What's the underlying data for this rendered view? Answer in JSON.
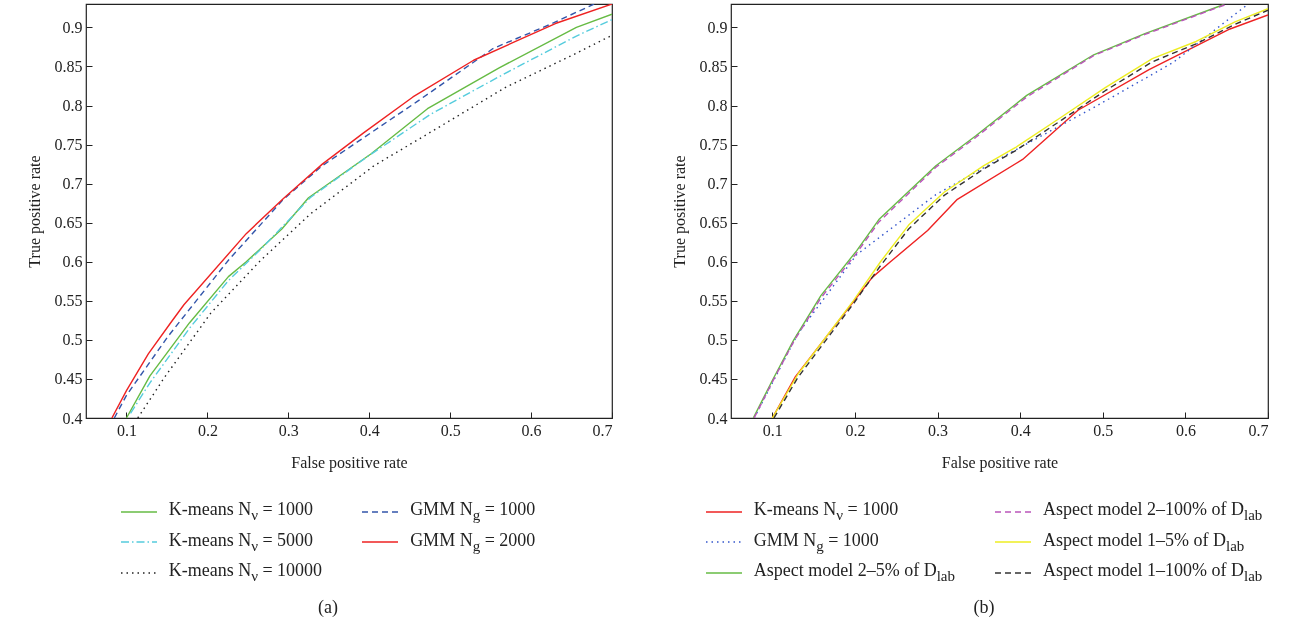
{
  "chart_data": [
    {
      "type": "line",
      "xlabel": "False positive rate",
      "ylabel": "True positive rate",
      "annotations": [
        "(a)"
      ],
      "xlim": [
        0.05,
        0.7
      ],
      "ylim": [
        0.4,
        0.93
      ],
      "xticks": [
        0.1,
        0.2,
        0.3,
        0.4,
        0.5,
        0.6,
        0.7
      ],
      "yticks": [
        0.4,
        0.45,
        0.5,
        0.55,
        0.6,
        0.65,
        0.7,
        0.75,
        0.8,
        0.85,
        0.9
      ],
      "grid": false,
      "legend": "bottom",
      "series": [
        {
          "name": "K-means N$_{ν}$ = 1000",
          "color": "#66bb44",
          "line_style": "solid",
          "x": [
            0.1,
            0.129,
            0.178,
            0.226,
            0.248,
            0.292,
            0.325,
            0.402,
            0.472,
            0.56,
            0.656,
            0.7
          ],
          "values": [
            0.4,
            0.454,
            0.522,
            0.581,
            0.6,
            0.642,
            0.682,
            0.738,
            0.796,
            0.848,
            0.9,
            0.917
          ]
        },
        {
          "name": "K-means N$_{ν}$ = 5000",
          "color": "#55ccdd",
          "line_style": "dashdot",
          "x": [
            0.105,
            0.129,
            0.178,
            0.226,
            0.266,
            0.327,
            0.397,
            0.476,
            0.564,
            0.656,
            0.7
          ],
          "values": [
            0.406,
            0.445,
            0.515,
            0.576,
            0.616,
            0.682,
            0.734,
            0.789,
            0.839,
            0.889,
            0.91
          ]
        },
        {
          "name": "K-means N$_{ν}$ = 10000",
          "color": "#222222",
          "line_style": "dotted",
          "x": [
            0.114,
            0.147,
            0.204,
            0.266,
            0.327,
            0.406,
            0.476,
            0.568,
            0.656,
            0.7
          ],
          "values": [
            0.4,
            0.452,
            0.534,
            0.602,
            0.661,
            0.723,
            0.766,
            0.823,
            0.867,
            0.89
          ]
        },
        {
          "name": "GMM N$_{g}$ = 1000",
          "color": "#3355aa",
          "line_style": "dashed",
          "x": [
            0.085,
            0.1,
            0.151,
            0.226,
            0.294,
            0.342,
            0.459,
            0.531,
            0.553,
            0.626,
            0.678
          ],
          "values": [
            0.4,
            0.429,
            0.504,
            0.602,
            0.68,
            0.723,
            0.805,
            0.857,
            0.873,
            0.905,
            0.93
          ]
        },
        {
          "name": "GMM N$_{g}$ = 2000",
          "color": "#ee2222",
          "line_style": "solid",
          "x": [
            0.082,
            0.1,
            0.127,
            0.154,
            0.171,
            0.248,
            0.294,
            0.342,
            0.393,
            0.454,
            0.529,
            0.63,
            0.7
          ],
          "values": [
            0.4,
            0.435,
            0.482,
            0.521,
            0.545,
            0.636,
            0.681,
            0.725,
            0.765,
            0.811,
            0.858,
            0.905,
            0.93
          ]
        }
      ]
    },
    {
      "type": "line",
      "xlabel": "False positive rate",
      "ylabel": "True positive rate",
      "annotations": [
        "(b)"
      ],
      "xlim": [
        0.05,
        0.7
      ],
      "ylim": [
        0.4,
        0.93
      ],
      "xticks": [
        0.1,
        0.2,
        0.3,
        0.4,
        0.5,
        0.6,
        0.7
      ],
      "yticks": [
        0.4,
        0.45,
        0.5,
        0.55,
        0.6,
        0.65,
        0.7,
        0.75,
        0.8,
        0.85,
        0.9
      ],
      "grid": false,
      "legend": "bottom",
      "series": [
        {
          "name": "K-means N$_{ν}$ = 1000",
          "color": "#ee2222",
          "line_style": "solid",
          "x": [
            0.1,
            0.128,
            0.221,
            0.243,
            0.288,
            0.324,
            0.403,
            0.47,
            0.556,
            0.654,
            0.7
          ],
          "values": [
            0.4,
            0.453,
            0.58,
            0.6,
            0.64,
            0.68,
            0.731,
            0.794,
            0.846,
            0.898,
            0.916
          ]
        },
        {
          "name": "GMM N$_{g}$ = 1000",
          "color": "#3355cc",
          "line_style": "dotted",
          "x": [
            0.078,
            0.131,
            0.202,
            0.298,
            0.394,
            0.49,
            0.585,
            0.676
          ],
          "values": [
            0.4,
            0.508,
            0.609,
            0.686,
            0.743,
            0.798,
            0.855,
            0.93
          ]
        },
        {
          "name": "Aspect model 2–5% of D$_{lab}$",
          "color": "#66bb44",
          "line_style": "solid",
          "x": [
            0.077,
            0.1,
            0.126,
            0.159,
            0.202,
            0.229,
            0.298,
            0.346,
            0.408,
            0.489,
            0.551,
            0.646
          ],
          "values": [
            0.4,
            0.448,
            0.5,
            0.557,
            0.614,
            0.654,
            0.723,
            0.761,
            0.813,
            0.865,
            0.892,
            0.929
          ]
        },
        {
          "name": "Aspect model 2–100% of D$_{lab}$",
          "color": "#bb55bb",
          "line_style": "dashed",
          "x": [
            0.078,
            0.1,
            0.126,
            0.159,
            0.202,
            0.229,
            0.298,
            0.346,
            0.408,
            0.489,
            0.551,
            0.648
          ],
          "values": [
            0.4,
            0.446,
            0.498,
            0.554,
            0.611,
            0.651,
            0.721,
            0.759,
            0.811,
            0.864,
            0.891,
            0.929
          ]
        },
        {
          "name": "Aspect model 1–5% of D$_{lab}$",
          "color": "#eeee22",
          "line_style": "solid",
          "x": [
            0.1,
            0.131,
            0.198,
            0.231,
            0.265,
            0.308,
            0.356,
            0.394,
            0.451,
            0.503,
            0.56,
            0.613,
            0.66,
            0.7
          ],
          "values": [
            0.4,
            0.456,
            0.55,
            0.6,
            0.647,
            0.689,
            0.723,
            0.746,
            0.786,
            0.823,
            0.86,
            0.882,
            0.907,
            0.924
          ]
        },
        {
          "name": "Aspect model 1–100% of D$_{lab}$",
          "color": "#333333",
          "line_style": "dashed",
          "x": [
            0.102,
            0.131,
            0.198,
            0.231,
            0.265,
            0.308,
            0.356,
            0.394,
            0.451,
            0.503,
            0.56,
            0.613,
            0.66,
            0.7
          ],
          "values": [
            0.4,
            0.452,
            0.546,
            0.595,
            0.642,
            0.685,
            0.719,
            0.742,
            0.782,
            0.819,
            0.856,
            0.879,
            0.904,
            0.922
          ]
        }
      ]
    }
  ]
}
